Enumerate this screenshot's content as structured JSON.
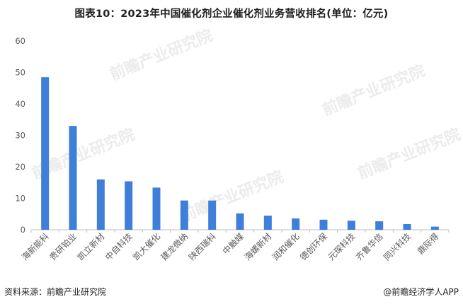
{
  "title": "图表10：2023年中国催化剂企业催化剂业务营收排名(单位：亿元)",
  "source": "资料来源：前瞻产业研究院",
  "brand": "@前瞻经济学人APP",
  "watermark": "前瞻产业研究院",
  "colors": {
    "bar": "#3f7fd9",
    "axis": "#bfbfbf",
    "text": "#595959"
  },
  "chart_data": {
    "type": "bar",
    "categories": [
      "海新能科",
      "贵研铂业",
      "凯立新材",
      "中自科技",
      "凯大催化",
      "建龙微纳",
      "陕西瑞科",
      "中触媒",
      "海螺新材",
      "润和催化",
      "德创环保",
      "元琛科技",
      "齐鲁华信",
      "同兴科技",
      "鼎际得"
    ],
    "values": [
      48.5,
      33,
      16,
      15.4,
      13.4,
      9.3,
      9.3,
      5.2,
      4.5,
      3.6,
      3.2,
      2.9,
      2.7,
      1.8,
      1.0
    ],
    "ylim": [
      0,
      60
    ],
    "yticks": [
      "0",
      "10",
      "20",
      "30",
      "40",
      "50",
      "60"
    ],
    "grid": false,
    "legend": "none"
  }
}
